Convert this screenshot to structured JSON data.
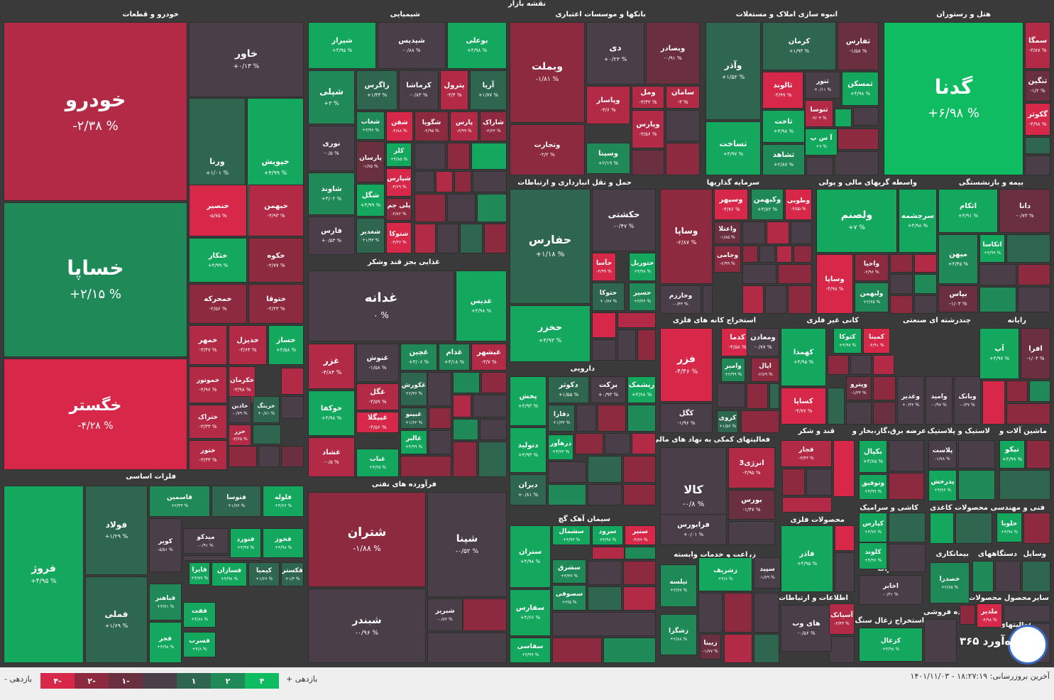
{
  "header": {
    "title": "نقشه بازار"
  },
  "colors": {
    "neg4": "#d7284a",
    "neg3": "#b22a46",
    "neg2": "#8e2a40",
    "neg1": "#6a3040",
    "zero": "#4a3e48",
    "pos1": "#2f6650",
    "pos2": "#1f8a58",
    "pos3": "#14a85e",
    "pos4": "#0fbc62"
  },
  "sections": [
    {
      "title": "خودرو و قطعات"
    },
    {
      "title": "شیمیایی"
    },
    {
      "title": "بانکها و موسسات اعتباری"
    },
    {
      "title": "انبوه سازی املاک و مستغلات"
    },
    {
      "title": "هتل و رستوران"
    },
    {
      "title": "حمل و نقل انبارداری و ارتباطات"
    },
    {
      "title": "سرمایه گذاریها"
    },
    {
      "title": "واسطه گریهای مالی و پولی"
    },
    {
      "title": "بیمه و بازنشستگی"
    },
    {
      "title": "غذایی بجز قند وشکر"
    },
    {
      "title": "استخراج کانه های فلزی"
    },
    {
      "title": "کانی غیر فلزی"
    },
    {
      "title": "چندرشته ای صنعتی"
    },
    {
      "title": "رایانه"
    },
    {
      "title": "دارویی"
    },
    {
      "title": "فعالیتهای کمکی به نهاد های مالی"
    },
    {
      "title": "قند و شکر"
    },
    {
      "title": "عرضه برق،گاز،بخار و"
    },
    {
      "title": "لاستیک و پلاستیک"
    },
    {
      "title": "ماشین آلات و"
    },
    {
      "title": "فلزات اساسی"
    },
    {
      "title": "فرآورده های نفتی"
    },
    {
      "title": "سیمان آهک گچ"
    },
    {
      "title": "کاشی و سرامیک"
    },
    {
      "title": "محصولات کاغذی"
    },
    {
      "title": "فنی و مهندسی"
    },
    {
      "title": "محصولات فلزی"
    },
    {
      "title": "زراعت و خدمات وابسته"
    },
    {
      "title": "بیمانکاری"
    },
    {
      "title": "دستگاههای"
    },
    {
      "title": "وسایل"
    },
    {
      "title": "مخابرات"
    },
    {
      "title": "اطلاعات و ارتباطات"
    },
    {
      "title": "محصول محصولات"
    },
    {
      "title": "سایر"
    },
    {
      "title": "خرده فروشی"
    },
    {
      "title": "استخراج زغال سنگ"
    },
    {
      "title": "فعالیتهای"
    }
  ],
  "tiles": [
    {
      "name": "خودرو",
      "pct": "-۲/۳۸ %",
      "c": "neg3"
    },
    {
      "name": "خاور",
      "pct": "+۰/۱۳ %",
      "c": "zero"
    },
    {
      "name": "ورنا",
      "pct": "+۱/۰۱ %",
      "c": "pos1"
    },
    {
      "name": "خپویش",
      "pct": "+۴/۹۹ %",
      "c": "pos3"
    },
    {
      "name": "خساپا",
      "pct": "+۲/۱۵ %",
      "c": "pos2"
    },
    {
      "name": "خنصیر",
      "pct": "-۵/۷۵ %",
      "c": "neg4"
    },
    {
      "name": "خبهمن",
      "pct": "-۳/۹۳ %",
      "c": "neg3"
    },
    {
      "name": "ختکار",
      "pct": "+۴/۹۹ %",
      "c": "pos3"
    },
    {
      "name": "خکوه",
      "pct": "-۲/۷۷ %",
      "c": "neg2"
    },
    {
      "name": "خمحرکه",
      "pct": "-۲/۵۶ %",
      "c": "neg2"
    },
    {
      "name": "ختوقا",
      "pct": "-۲/۲۳ %",
      "c": "neg2"
    },
    {
      "name": "خگستر",
      "pct": "-۴/۲۸ %",
      "c": "neg4"
    },
    {
      "name": "خمهر",
      "pct": "-۳/۴۷ %",
      "c": "neg3"
    },
    {
      "name": "خدیزل",
      "pct": "-۳/۶۳ %",
      "c": "neg3"
    },
    {
      "name": "خساز",
      "pct": "+۴/۵۸ %",
      "c": "pos3"
    },
    {
      "name": "خموتور",
      "pct": "-۴/۹۶ %",
      "c": "neg3"
    },
    {
      "name": "خکرمان",
      "pct": "-۳/۹۸ %",
      "c": "neg3"
    },
    {
      "name": "ختراک",
      "pct": "-۳/۳۳ %",
      "c": "neg3"
    },
    {
      "name": "خاذین",
      "pct": "-۰/۷۹ %",
      "c": "zero"
    },
    {
      "name": "خرینگ",
      "pct": "+۰/۸۱ %",
      "c": "pos1"
    },
    {
      "name": "خزر",
      "pct": "-۳/۶۵ %",
      "c": "neg3"
    },
    {
      "name": "ختور",
      "pct": "-۳/۳۳ %",
      "c": "neg3"
    },
    {
      "name": "شیراز",
      "pct": "+۴/۹۵ %",
      "c": "pos3"
    },
    {
      "name": "شپدیس",
      "pct": "-۰/۸۸ %",
      "c": "zero"
    },
    {
      "name": "بوعلی",
      "pct": "+۴/۹۸ %",
      "c": "pos3"
    },
    {
      "name": "شپلی",
      "pct": "+۳ %",
      "c": "pos2"
    },
    {
      "name": "زاگرس",
      "pct": "+۱/۴۳ %",
      "c": "pos1"
    },
    {
      "name": "کرماشا",
      "pct": "-۰/۸۳ %",
      "c": "zero"
    },
    {
      "name": "پترول",
      "pct": "-۳/۴ %",
      "c": "neg3"
    },
    {
      "name": "آریا",
      "pct": "+۱/۷۷ %",
      "c": "pos1"
    },
    {
      "name": "شفن",
      "pct": "-۴/۸۸ %",
      "c": "neg4"
    },
    {
      "name": "شگویا",
      "pct": "-۲/۹۵ %",
      "c": "neg2"
    },
    {
      "name": "پارس",
      "pct": "-۳/۹۹ %",
      "c": "neg3"
    },
    {
      "name": "شاراک",
      "pct": "-۲/۶۲ %",
      "c": "neg2"
    },
    {
      "name": "شغاب",
      "pct": "+۳/۹۶ %",
      "c": "pos2"
    },
    {
      "name": "نوری",
      "pct": "-۰/۵ %",
      "c": "zero"
    },
    {
      "name": "کلر",
      "pct": "+۴/۸۵ %",
      "c": "pos3"
    },
    {
      "name": "پارسان",
      "pct": "-۱/۷۵ %",
      "c": "neg1"
    },
    {
      "name": "شپارس",
      "pct": "-۴/۶۹ %",
      "c": "neg4"
    },
    {
      "name": "شاوند",
      "pct": "+۳/۰۲ %",
      "c": "pos2"
    },
    {
      "name": "شگل",
      "pct": "+۴/۹۹ %",
      "c": "pos3"
    },
    {
      "name": "پلی جم",
      "pct": "-۲/۸۲ %",
      "c": "neg2"
    },
    {
      "name": "فارس",
      "pct": "+۰/۵۳ %",
      "c": "zero"
    },
    {
      "name": "شغدیر",
      "pct": "+۱/۹۳ %",
      "c": "pos1"
    },
    {
      "name": "شتوکا",
      "pct": "-۴/۳۶ %",
      "c": "neg4"
    },
    {
      "name": "وبملت",
      "pct": "-۱/۸۱ %",
      "c": "neg2"
    },
    {
      "name": "دی",
      "pct": "+۰/۲۳ %",
      "c": "zero"
    },
    {
      "name": "وبصادر",
      "pct": "-۰/۹۱ %",
      "c": "neg1"
    },
    {
      "name": "وپاسار",
      "pct": "-۳/۶ %",
      "c": "neg3"
    },
    {
      "name": "ومل",
      "pct": "-۳/۳۲ %",
      "c": "neg3"
    },
    {
      "name": "سامان",
      "pct": "-۳ %",
      "c": "neg3"
    },
    {
      "name": "وتجارت",
      "pct": "-۲/۲ %",
      "c": "neg2"
    },
    {
      "name": "وپارس",
      "pct": "-۳/۵۶ %",
      "c": "neg3"
    },
    {
      "name": "وسینا",
      "pct": "+۲/۱۹ %",
      "c": "pos2"
    },
    {
      "name": "وآذر",
      "pct": "+۱/۵۲ %",
      "c": "pos1"
    },
    {
      "name": "کرمان",
      "pct": "+۱/۹۳ %",
      "c": "pos1"
    },
    {
      "name": "ثفارس",
      "pct": "-۱/۵۸ %",
      "c": "neg1"
    },
    {
      "name": "ثالوند",
      "pct": "-۴/۹۹ %",
      "c": "neg4"
    },
    {
      "name": "ثنور",
      "pct": "+۰/۱۱ %",
      "c": "zero"
    },
    {
      "name": "ثمسکن",
      "pct": "+۴/۹۸ %",
      "c": "pos3"
    },
    {
      "name": "ثنوسا",
      "pct": "-۳/۰۴ %",
      "c": "neg3"
    },
    {
      "name": "ثساخت",
      "pct": "+۴/۹۷ %",
      "c": "pos3"
    },
    {
      "name": "ثاخت",
      "pct": "+۴/۹۸ %",
      "c": "pos3"
    },
    {
      "name": "آ س پ",
      "pct": "+۷ %",
      "c": "pos3"
    },
    {
      "name": "ثشاهد",
      "pct": "+۲/۸۷ %",
      "c": "pos2"
    },
    {
      "name": "گدنا",
      "pct": "+۶/۹۸ %",
      "c": "pos4"
    },
    {
      "name": "سمگا",
      "pct": "-۳/۸۷ %",
      "c": "neg3"
    },
    {
      "name": "ثنگین",
      "pct": "-۱/۲ %",
      "c": "neg1"
    },
    {
      "name": "گکوثر",
      "pct": "-۴/۹۸ %",
      "c": "neg4"
    },
    {
      "name": "حفارس",
      "pct": "+۱/۱۸ %",
      "c": "pos1"
    },
    {
      "name": "حکشتی",
      "pct": "-۰/۴۷ %",
      "c": "zero"
    },
    {
      "name": "حآسا",
      "pct": "-۴/۹۹ %",
      "c": "neg4"
    },
    {
      "name": "حتوریل",
      "pct": "+۴/۹۸ %",
      "c": "pos3"
    },
    {
      "name": "حتوکا",
      "pct": "+۰/۷۷ %",
      "c": "pos1"
    },
    {
      "name": "حسیر",
      "pct": "+۳/۳۶ %",
      "c": "pos2"
    },
    {
      "name": "حخزر",
      "pct": "+۴/۹۳ %",
      "c": "pos3"
    },
    {
      "name": "وساپا",
      "pct": "-۲/۸۷ %",
      "c": "neg2"
    },
    {
      "name": "وسپهر",
      "pct": "-۴/۷۶ %",
      "c": "neg4"
    },
    {
      "name": "وکبهمن",
      "pct": "+۳/۸۲ %",
      "c": "pos2"
    },
    {
      "name": "وطوبی",
      "pct": "-۴/۵۵ %",
      "c": "neg4"
    },
    {
      "name": "واعتلا",
      "pct": "-۱/۸۵ %",
      "c": "neg1"
    },
    {
      "name": "وجامی",
      "pct": "-۲/۹۹ %",
      "c": "neg2"
    },
    {
      "name": "وخارزم",
      "pct": "-۰/۴۴ %",
      "c": "zero"
    },
    {
      "name": "ولصنم",
      "pct": "+۷ %",
      "c": "pos3"
    },
    {
      "name": "سرچشمه",
      "pct": "+۴/۹۸ %",
      "c": "pos3"
    },
    {
      "name": "وساپا",
      "pct": "-۴/۹۸ %",
      "c": "neg4"
    },
    {
      "name": "واحیا",
      "pct": "-۲/۹۶ %",
      "c": "neg2"
    },
    {
      "name": "ولبهمن",
      "pct": "+۲/۶۵ %",
      "c": "pos2"
    },
    {
      "name": "اتکام",
      "pct": "+۴/۹۱ %",
      "c": "pos3"
    },
    {
      "name": "دانا",
      "pct": "-۰/۷۳ %",
      "c": "neg1"
    },
    {
      "name": "اتکاسا",
      "pct": "+۴/۹۹ %",
      "c": "pos3"
    },
    {
      "name": "میهن",
      "pct": "+۴/۴۵ %",
      "c": "pos2"
    },
    {
      "name": "بپاس",
      "pct": "-۱/۰۳ %",
      "c": "neg1"
    },
    {
      "name": "غدانه",
      "pct": "۰ %",
      "c": "zero"
    },
    {
      "name": "غدیس",
      "pct": "+۴/۹۸ %",
      "c": "pos3"
    },
    {
      "name": "غزر",
      "pct": "-۴/۸۴ %",
      "c": "neg3"
    },
    {
      "name": "غنوش",
      "pct": "-۱/۵۸ %",
      "c": "zero"
    },
    {
      "name": "غچین",
      "pct": "+۳/۰۶ %",
      "c": "pos2"
    },
    {
      "name": "غدام",
      "pct": "+۳/۱۸ %",
      "c": "pos2"
    },
    {
      "name": "غبشهر",
      "pct": "-۳/۷ %",
      "c": "neg3"
    },
    {
      "name": "خوکفا",
      "pct": "+۴/۹۸ %",
      "c": "pos3"
    },
    {
      "name": "غگل",
      "pct": "-۳/۵۹ %",
      "c": "neg3"
    },
    {
      "name": "غکورش",
      "pct": "+۲/۳۶ %",
      "c": "pos1"
    },
    {
      "name": "غبیگلا",
      "pct": "-۴/۵۶ %",
      "c": "neg4"
    },
    {
      "name": "غبینو",
      "pct": "+۱/۶۲ %",
      "c": "pos1"
    },
    {
      "name": "غالبر",
      "pct": "+۴/۹۹ %",
      "c": "pos3"
    },
    {
      "name": "غشاد",
      "pct": "-۰/۵ %",
      "c": "neg3"
    },
    {
      "name": "غناب",
      "pct": "+۴/۳۵ %",
      "c": "pos3"
    },
    {
      "name": "فزر",
      "pct": "-۴/۴۶ %",
      "c": "neg4"
    },
    {
      "name": "کدما",
      "pct": "-۴/۵۸ %",
      "c": "neg4"
    },
    {
      "name": "ومعادن",
      "pct": "-۰/۷۷ %",
      "c": "zero"
    },
    {
      "name": "وامیر",
      "pct": "+۲/۹۹ %",
      "c": "pos2"
    },
    {
      "name": "اپال",
      "pct": "-۲/۸۹ %",
      "c": "neg2"
    },
    {
      "name": "کگل",
      "pct": "-۱/۹۶ %",
      "c": "zero"
    },
    {
      "name": "کروی",
      "pct": "+۱/۵۶ %",
      "c": "pos1"
    },
    {
      "name": "کتوکا",
      "pct": "+۴/۹۷ %",
      "c": "pos3"
    },
    {
      "name": "کمینا",
      "pct": "-۴/۹۱ %",
      "c": "neg4"
    },
    {
      "name": "کهمدا",
      "pct": "+۴/۹۵ %",
      "c": "pos3"
    },
    {
      "name": "کساپا",
      "pct": "-۴/۷۷ %",
      "c": "neg4"
    },
    {
      "name": "وپترو",
      "pct": "-۱/۳۳ %",
      "c": "neg1"
    },
    {
      "name": "وغدیر",
      "pct": "+۰/۳۲ %",
      "c": "zero"
    },
    {
      "name": "وامید",
      "pct": "-۰/۹۷ %",
      "c": "zero"
    },
    {
      "name": "وبانک",
      "pct": "-۰/۳۷ %",
      "c": "zero"
    },
    {
      "name": "آپ",
      "pct": "+۴/۹۷ %",
      "c": "pos3"
    },
    {
      "name": "افرا",
      "pct": "-۱/۰۴ %",
      "c": "neg1"
    },
    {
      "name": "پخش",
      "pct": "+۴/۹۳ %",
      "c": "pos3"
    },
    {
      "name": "دکوثر",
      "pct": "+۱/۵۵ %",
      "c": "pos1"
    },
    {
      "name": "برکت",
      "pct": "+۰/۹۳ %",
      "c": "zero"
    },
    {
      "name": "ریشمک",
      "pct": "+۴/۶۸ %",
      "c": "pos3"
    },
    {
      "name": "دفارا",
      "pct": "+۱/۳۳ %",
      "c": "pos1"
    },
    {
      "name": "دتولید",
      "pct": "+۴/۹۳ %",
      "c": "pos3"
    },
    {
      "name": "درهآور",
      "pct": "+۴/۳۳ %",
      "c": "pos3"
    },
    {
      "name": "دیران",
      "pct": "+۰/۸۱ %",
      "c": "pos1"
    },
    {
      "name": "کالا",
      "pct": "-۰/۸ %",
      "c": "zero"
    },
    {
      "name": "انرژی3",
      "pct": "-۳/۹۵ %",
      "c": "neg3"
    },
    {
      "name": "بورس",
      "pct": "-۱/۴۷ %",
      "c": "neg1"
    },
    {
      "name": "فرابورس",
      "pct": "+۰/۰۱ %",
      "c": "zero"
    },
    {
      "name": "قجار",
      "pct": "-۳/۴۳ %",
      "c": "neg3"
    },
    {
      "name": "بکپال",
      "pct": "+۴/۶۵ %",
      "c": "pos3"
    },
    {
      "name": "پلاست",
      "pct": "-۱/۷۸ %",
      "c": "zero"
    },
    {
      "name": "تیکو",
      "pct": "+۴/۹۹ %",
      "c": "pos3"
    },
    {
      "name": "وتوفیق",
      "pct": "+۴/۹۹ %",
      "c": "pos3"
    },
    {
      "name": "پدرخش",
      "pct": "+۴/۷۶ %",
      "c": "pos3"
    },
    {
      "name": "فولاد",
      "pct": "+۱/۲۹ %",
      "c": "pos1"
    },
    {
      "name": "فروژ",
      "pct": "+۴/۹۵ %",
      "c": "pos3"
    },
    {
      "name": "قاسمین",
      "pct": "+۲/۴۳ %",
      "c": "pos2"
    },
    {
      "name": "فتوسا",
      "pct": "+۱/۷۶ %",
      "c": "pos1"
    },
    {
      "name": "فلوله",
      "pct": "+۴/۶۶ %",
      "c": "pos3"
    },
    {
      "name": "کویر",
      "pct": "-۵/۵۱ %",
      "c": "zero"
    },
    {
      "name": "میدکو",
      "pct": "-۰/۹۱ %",
      "c": "zero"
    },
    {
      "name": "فنورد",
      "pct": "+۴/۹۷ %",
      "c": "pos3"
    },
    {
      "name": "فخوز",
      "pct": "+۴/۹۸ %",
      "c": "pos3"
    },
    {
      "name": "فملی",
      "pct": "+۱/۶۹ %",
      "c": "pos1"
    },
    {
      "name": "فایرا",
      "pct": "+۴/۷۷ %",
      "c": "pos3"
    },
    {
      "name": "فسازان",
      "pct": "+۴/۹۸ %",
      "c": "pos3"
    },
    {
      "name": "کیمیا",
      "pct": "+۱/۶۶ %",
      "c": "pos1"
    },
    {
      "name": "فکستر",
      "pct": "+۱/۳ %",
      "c": "pos1"
    },
    {
      "name": "فباهنر",
      "pct": "+۳/۷۱ %",
      "c": "pos2"
    },
    {
      "name": "ففت",
      "pct": "+۴/۸۸ %",
      "c": "pos3"
    },
    {
      "name": "فجر",
      "pct": "+۴/۹۸ %",
      "c": "pos3"
    },
    {
      "name": "فسرب",
      "pct": "+۴/۸ %",
      "c": "pos3"
    },
    {
      "name": "شتران",
      "pct": "-۱/۸۸ %",
      "c": "neg2"
    },
    {
      "name": "شپنا",
      "pct": "-۰/۵۲ %",
      "c": "zero"
    },
    {
      "name": "شبندر",
      "pct": "-۰/۹۶ %",
      "c": "zero"
    },
    {
      "name": "شبریز",
      "pct": "-۰/۸۳ %",
      "c": "zero"
    },
    {
      "name": "ستران",
      "pct": "+۴/۹۸ %",
      "c": "pos3"
    },
    {
      "name": "سشمال",
      "pct": "+۴/۹۳ %",
      "c": "pos3"
    },
    {
      "name": "سرود",
      "pct": "+۴/۹۸ %",
      "c": "pos3"
    },
    {
      "name": "سنیر",
      "pct": "-۴/۷۷ %",
      "c": "neg4"
    },
    {
      "name": "سشرق",
      "pct": "+۳/۳۷ %",
      "c": "pos2"
    },
    {
      "name": "سصوفی",
      "pct": "+۳/۵ %",
      "c": "pos2"
    },
    {
      "name": "سفارس",
      "pct": "+۴/۶۶ %",
      "c": "pos3"
    },
    {
      "name": "سفاسی",
      "pct": "+۴/۹۹ %",
      "c": "pos3"
    },
    {
      "name": "سپید",
      "pct": "-۱/۷۹ %",
      "c": "zero"
    },
    {
      "name": "زشریف",
      "pct": "+۴/۸ %",
      "c": "pos3"
    },
    {
      "name": "تیلسه",
      "pct": "+۲/۷۷ %",
      "c": "pos2"
    },
    {
      "name": "زشگزا",
      "pct": "+۲/۸۸ %",
      "c": "pos2"
    },
    {
      "name": "زبینا",
      "pct": "-۱/۷۷ %",
      "c": "neg1"
    },
    {
      "name": "فاذر",
      "pct": "+۴/۹۵ %",
      "c": "pos3"
    },
    {
      "name": "های وب",
      "pct": "-۰/۵۶ %",
      "c": "zero"
    },
    {
      "name": "آسیاتک",
      "pct": "-۳/۴۳ %",
      "c": "neg3"
    },
    {
      "name": "اخابر",
      "pct": "-۰/۳۱ %",
      "c": "zero"
    },
    {
      "name": "کزغال",
      "pct": "+۴/۹۸ %",
      "c": "pos3"
    },
    {
      "name": "کپارس",
      "pct": "+۴/۷۶ %",
      "c": "pos3"
    },
    {
      "name": "کلوند",
      "pct": "+۴/۹۶ %",
      "c": "pos3"
    },
    {
      "name": "خلوبا",
      "pct": "+۴/۹۸ %",
      "c": "pos3"
    },
    {
      "name": "خصدرا",
      "pct": "+۲/۶۵ %",
      "c": "pos2"
    },
    {
      "name": "ملدیر",
      "pct": "-۴/۹۸ %",
      "c": "neg4"
    }
  ],
  "legend": {
    "label_pos": "بازدهی +",
    "label_neg": "بازدهی -",
    "items": [
      "۴",
      "۲",
      "۱",
      "",
      "-۱",
      "-۲",
      "-۴"
    ]
  },
  "footer": {
    "updated": "آخرین بروزرسانی: ۱۸:۲۷:۱۹ - ۱۴۰۱/۱۱/۰۳",
    "watermark": "ره‌آورد ۳۶۵"
  }
}
